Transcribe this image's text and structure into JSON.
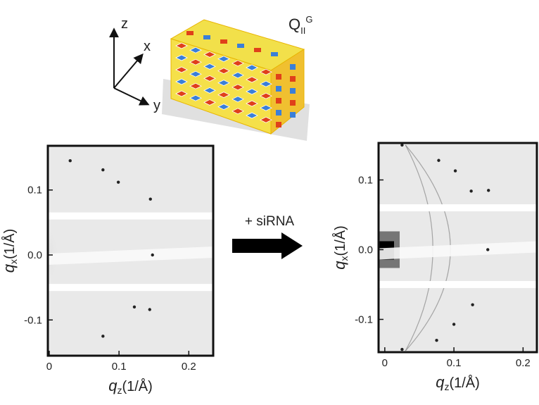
{
  "figure": {
    "axis_z": "z",
    "axis_x": "x",
    "axis_y": "y",
    "phase": {
      "base": "Q",
      "subscript": "II",
      "superscript": "G"
    },
    "arrow_label": "+ siRNA"
  },
  "chart_data": [
    {
      "type": "scatter",
      "x_label": {
        "symbol": "q",
        "subscript": "z",
        "unit": "(1/Å)"
      },
      "y_label": {
        "symbol": "q",
        "subscript": "x",
        "unit": "(1/Å)"
      },
      "x": [
        0.03,
        0.077,
        0.099,
        0.145,
        0.148,
        0.122,
        0.144,
        0.077
      ],
      "values": [
        0.145,
        0.131,
        0.112,
        0.086,
        0,
        -0.08,
        -0.084,
        -0.125
      ],
      "color": "#222222",
      "xlim": [
        -0.002,
        0.235
      ],
      "ylim": [
        -0.155,
        0.168
      ],
      "xticks": [
        0,
        0.1,
        0.2
      ],
      "yticks": [
        -0.1,
        {
          "value": 0,
          "label": "0.0"
        },
        0.1
      ]
    },
    {
      "type": "scatter",
      "x_label": {
        "symbol": "q",
        "subscript": "z",
        "unit": "(1/Å)"
      },
      "y_label": {
        "symbol": "q",
        "subscript": "x",
        "unit": "(1/Å)"
      },
      "x": [
        0.025,
        0.078,
        0.102,
        0.125,
        0.15,
        0.149,
        0.127,
        0.1,
        0.075,
        0.025
      ],
      "values": [
        0.15,
        0.128,
        0.113,
        0.084,
        0.085,
        0,
        -0.079,
        -0.107,
        -0.13,
        -0.143
      ],
      "color": "#222222",
      "xlim": [
        -0.009,
        0.22
      ],
      "ylim": [
        -0.147,
        0.153
      ],
      "xticks": [
        0,
        0.1,
        0.2
      ],
      "yticks": [
        -0.1,
        {
          "value": 0,
          "label": "0.0"
        },
        0.1
      ]
    }
  ]
}
